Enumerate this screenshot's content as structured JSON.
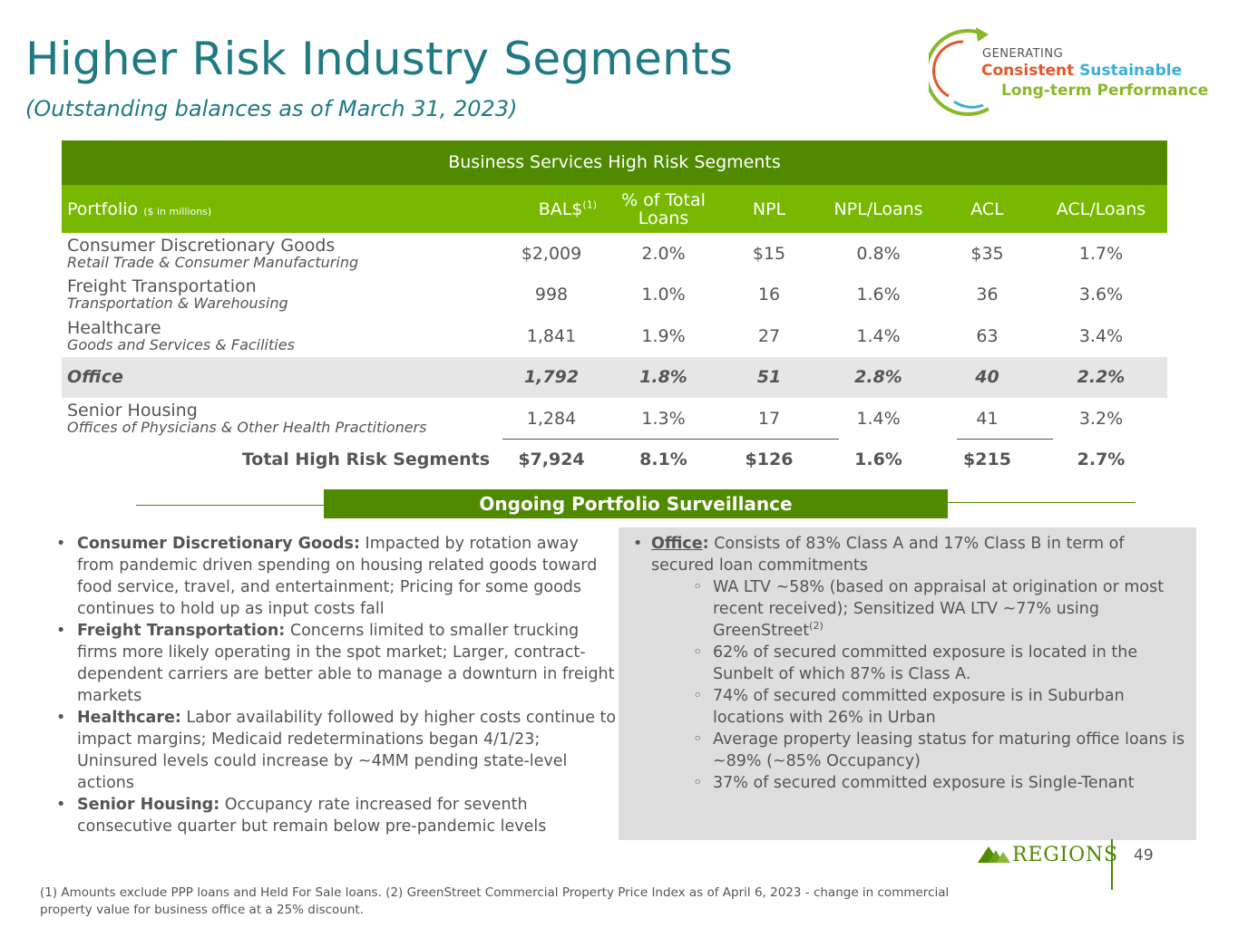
{
  "header": {
    "title": "Higher Risk Industry Segments",
    "subtitle": "(Outstanding balances as of March 31, 2023)"
  },
  "logo": {
    "line1": "GENERATING",
    "word_consistent": "Consistent",
    "word_sustainable": "Sustainable",
    "line3": "Long-term Performance",
    "colors": {
      "consistent": "#e2582d",
      "sustainable": "#3aaed8",
      "longterm": "#8ab82c"
    }
  },
  "table": {
    "heading": "Business Services High Risk Segments",
    "columns": {
      "portfolio": "Portfolio",
      "portfolio_unit": "($ in millions)",
      "bal": "BAL$",
      "bal_note": "(1)",
      "pct_total": "% of Total Loans",
      "npl": "NPL",
      "npl_loans": "NPL/Loans",
      "acl": "ACL",
      "acl_loans": "ACL/Loans"
    },
    "rows": [
      {
        "name": "Consumer Discretionary Goods",
        "sub": "Retail Trade & Consumer Manufacturing",
        "bal": "$2,009",
        "pct": "2.0%",
        "npl": "$15",
        "npl_loans": "0.8%",
        "acl": "$35",
        "acl_loans": "1.7%"
      },
      {
        "name": "Freight Transportation",
        "sub": "Transportation & Warehousing",
        "bal": "998",
        "pct": "1.0%",
        "npl": "16",
        "npl_loans": "1.6%",
        "acl": "36",
        "acl_loans": "3.6%"
      },
      {
        "name": "Healthcare",
        "sub": "Goods and Services & Facilities",
        "bal": "1,841",
        "pct": "1.9%",
        "npl": "27",
        "npl_loans": "1.4%",
        "acl": "63",
        "acl_loans": "3.4%"
      },
      {
        "name": "Office",
        "sub": "",
        "bal": "1,792",
        "pct": "1.8%",
        "npl": "51",
        "npl_loans": "2.8%",
        "acl": "40",
        "acl_loans": "2.2%"
      },
      {
        "name": "Senior Housing",
        "sub": "Offices of Physicians & Other Health Practitioners",
        "bal": "1,284",
        "pct": "1.3%",
        "npl": "17",
        "npl_loans": "1.4%",
        "acl": "41",
        "acl_loans": "3.2%"
      }
    ],
    "total": {
      "label": "Total High Risk Segments",
      "bal": "$7,924",
      "pct": "8.1%",
      "npl": "$126",
      "npl_loans": "1.6%",
      "acl": "$215",
      "acl_loans": "2.7%"
    }
  },
  "surveillance": {
    "label": "Ongoing Portfolio Surveillance"
  },
  "left_bullets": [
    {
      "label": "Consumer Discretionary Goods:",
      "text": " Impacted by rotation away from pandemic driven spending on housing related goods toward food service, travel, and entertainment; Pricing for some goods continues to hold up as input costs fall"
    },
    {
      "label": "Freight Transportation:",
      "text": " Concerns limited to smaller trucking firms more likely operating in the spot market; Larger, contract-dependent carriers are better able to manage a downturn in freight markets"
    },
    {
      "label": "Healthcare:",
      "text": " Labor availability followed by higher costs continue to impact margins; Medicaid redeterminations began 4/1/23; Uninsured levels could increase by ~4MM pending state-level actions"
    },
    {
      "label": "Senior Housing:",
      "text": " Occupancy rate increased for seventh consecutive quarter but remain below pre-pandemic levels"
    }
  ],
  "office_panel": {
    "label": "Office",
    "colon": ":",
    "text": " Consists of 83% Class A and 17% Class B in term of secured loan commitments",
    "sub1_text": "WA LTV ~58% (based on appraisal at origination or most recent received); Sensitized WA LTV ~77% using GreenStreet",
    "sub1_note": "(2)",
    "sub2": "62% of secured committed exposure is located in the Sunbelt of which 87% is Class A.",
    "sub3": "74% of secured committed exposure is in Suburban locations with 26% in Urban",
    "sub4": "Average property leasing status for maturing office loans is ~89% (~85% Occupancy)",
    "sub5": "37% of secured committed exposure is Single-Tenant"
  },
  "footer": {
    "brand": "REGIONS",
    "page": "49",
    "footnote": "(1) Amounts exclude PPP loans and Held For Sale loans. (2) GreenStreet Commercial Property Price Index as of April 6, 2023 - change in commercial property value for business office at a 25% discount."
  },
  "colors": {
    "teal": "#1f7a83",
    "dark_green": "#4f8a00",
    "light_green": "#78b800",
    "panel_gray": "#dedede"
  }
}
